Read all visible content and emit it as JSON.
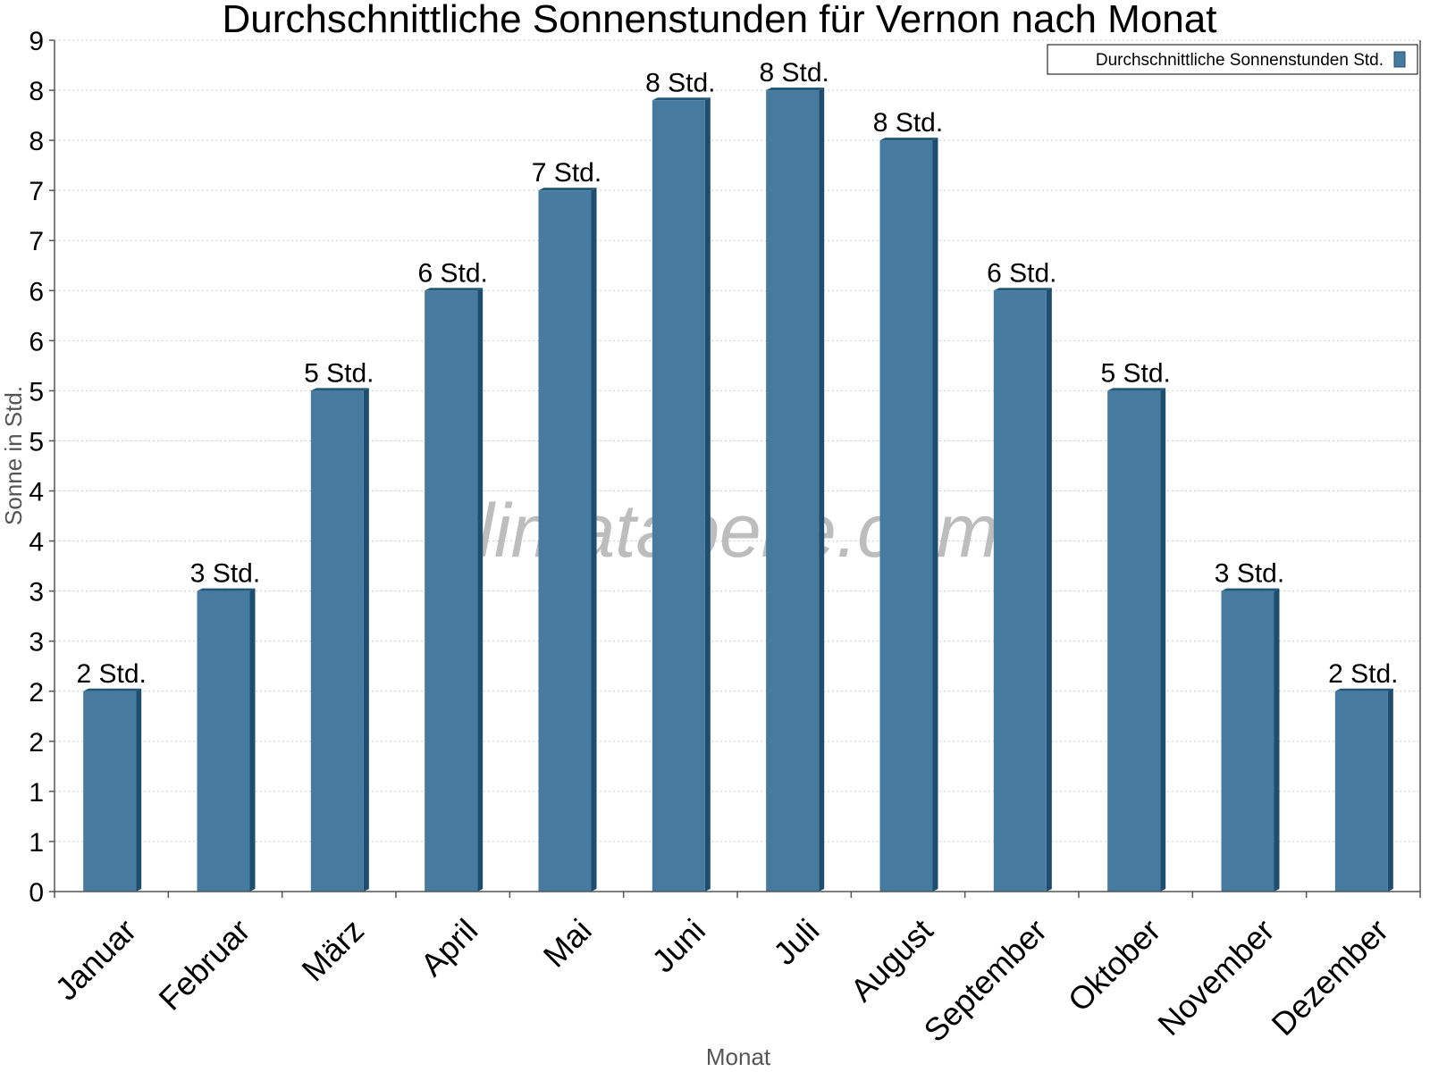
{
  "chart_data": {
    "type": "bar",
    "title": "Durchschnittliche Sonnenstunden für Vernon nach Monat",
    "xlabel": "Monat",
    "ylabel": "Sonne in Std.",
    "categories": [
      "Januar",
      "Februar",
      "März",
      "April",
      "Mai",
      "Juni",
      "Juli",
      "August",
      "September",
      "Oktober",
      "November",
      "Dezember"
    ],
    "series": [
      {
        "name": "Durchschnittliche Sonnenstunden Std.",
        "values": [
          2.0,
          3.0,
          5.0,
          6.0,
          7.0,
          7.9,
          8.0,
          7.5,
          6.0,
          5.0,
          3.0,
          2.0
        ],
        "labels": [
          "2 Std.",
          "3 Std.",
          "5 Std.",
          "6 Std.",
          "7 Std.",
          "8 Std.",
          "8 Std.",
          "8 Std.",
          "6 Std.",
          "5 Std.",
          "3 Std.",
          "2 Std."
        ]
      }
    ],
    "ylim": [
      0,
      8.5
    ],
    "yticks": [
      0,
      0.5,
      1.0,
      1.5,
      2.0,
      2.5,
      3.0,
      3.5,
      4.0,
      4.5,
      5.0,
      5.5,
      6.0,
      6.5,
      7.0,
      7.5,
      8.0,
      8.5
    ],
    "ytick_labels": [
      "0",
      "1",
      "1",
      "2",
      "2",
      "3",
      "3",
      "4",
      "4",
      "5",
      "5",
      "6",
      "6",
      "7",
      "7",
      "8",
      "8",
      "9"
    ],
    "grid": true,
    "legend_position": "top-right",
    "colors": {
      "bar": "#467b9f",
      "bar_side": "#1d4d6f",
      "bar_top": "#23577a"
    }
  },
  "watermark": "klimatabelle.com"
}
